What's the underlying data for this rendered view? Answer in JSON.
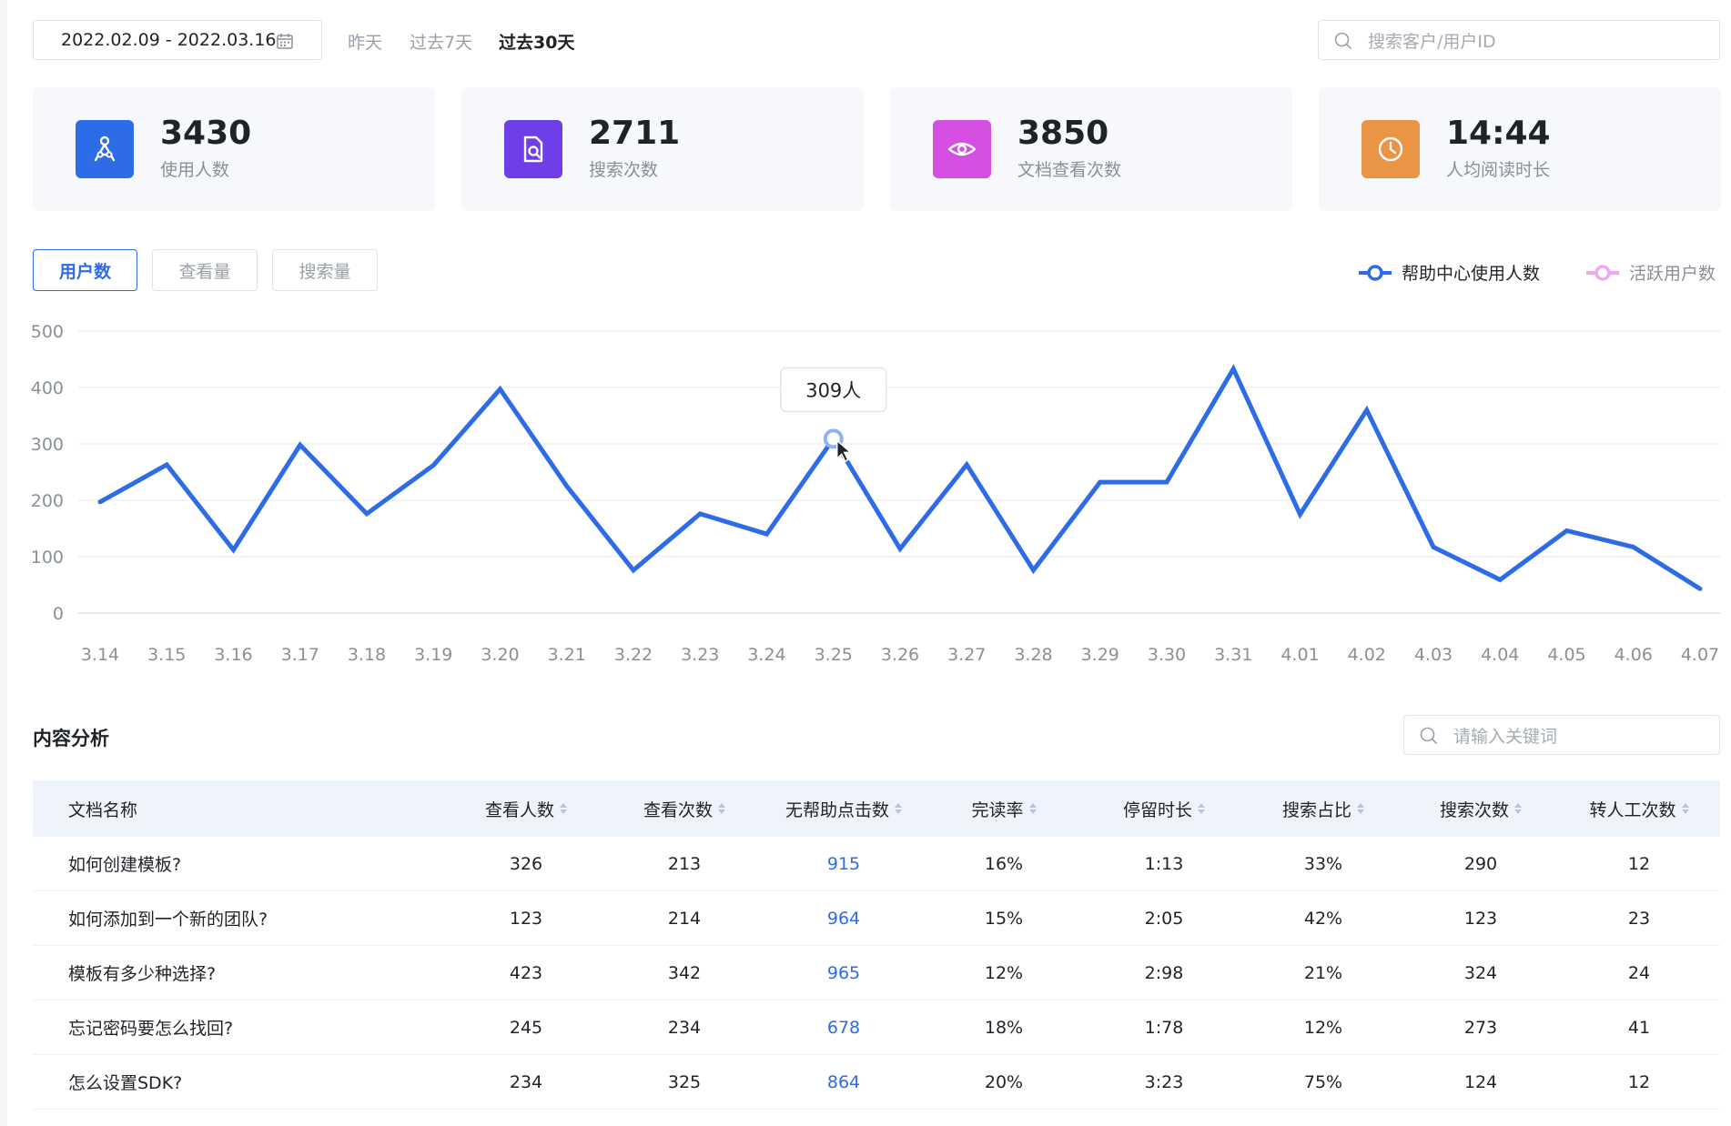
{
  "filters": {
    "date_range": "2022.02.09 - 2022.03.16",
    "quick_ranges": [
      "昨天",
      "过去7天",
      "过去30天"
    ],
    "active_quick_range": 2,
    "search_placeholder": "搜索客户/用户ID"
  },
  "stats": [
    {
      "value": "3430",
      "label": "使用人数",
      "icon": "users-icon",
      "color": "#2e6be6"
    },
    {
      "value": "2711",
      "label": "搜索次数",
      "icon": "doc-search-icon",
      "color": "#6e3ee6"
    },
    {
      "value": "3850",
      "label": "文档查看次数",
      "icon": "eye-icon",
      "color": "#d64fe3"
    },
    {
      "value": "14:44",
      "label": "人均阅读时长",
      "icon": "clock-icon",
      "color": "#ea9445"
    }
  ],
  "tabs": [
    "用户数",
    "查看量",
    "搜索量"
  ],
  "active_tab": 0,
  "legend": [
    {
      "name": "帮助中心使用人数",
      "color": "#2e6be6"
    },
    {
      "name": "活跃用户数",
      "color": "#f0a8ee"
    }
  ],
  "tooltip": {
    "text": "309人",
    "index": 11
  },
  "chart_data": {
    "type": "line",
    "x": [
      "3.14",
      "3.15",
      "3.16",
      "3.17",
      "3.18",
      "3.19",
      "3.20",
      "3.21",
      "3.22",
      "3.23",
      "3.24",
      "3.25",
      "3.26",
      "3.27",
      "3.28",
      "3.29",
      "3.30",
      "3.31",
      "4.01",
      "4.02",
      "4.03",
      "4.04",
      "4.05",
      "4.06",
      "4.07"
    ],
    "yticks": [
      "0",
      "100",
      "200",
      "300",
      "400",
      "500"
    ],
    "ylim": [
      0,
      500
    ],
    "grid": true,
    "series": [
      {
        "name": "帮助中心使用人数",
        "color": "#2e6be6",
        "values": [
          197,
          263,
          112,
          298,
          176,
          262,
          397,
          225,
          76,
          176,
          140,
          309,
          114,
          263,
          76,
          232,
          232,
          433,
          175,
          360,
          117,
          59,
          146,
          117,
          43
        ]
      }
    ]
  },
  "content": {
    "title": "内容分析",
    "search_placeholder": "请输入关键词",
    "columns": [
      "文档名称",
      "查看人数",
      "查看次数",
      "无帮助点击数",
      "完读率",
      "停留时长",
      "搜索占比",
      "搜索次数",
      "转人工次数"
    ],
    "rows": [
      [
        "如何创建模板?",
        "326",
        "213",
        "915",
        "16%",
        "1:13",
        "33%",
        "290",
        "12"
      ],
      [
        "如何添加到一个新的团队?",
        "123",
        "214",
        "964",
        "15%",
        "2:05",
        "42%",
        "123",
        "23"
      ],
      [
        "模板有多少种选择?",
        "423",
        "342",
        "965",
        "12%",
        "2:98",
        "21%",
        "324",
        "24"
      ],
      [
        "忘记密码要怎么找回?",
        "245",
        "234",
        "678",
        "18%",
        "1:78",
        "12%",
        "273",
        "41"
      ],
      [
        "怎么设置SDK?",
        "234",
        "325",
        "864",
        "20%",
        "3:23",
        "75%",
        "124",
        "12"
      ]
    ]
  }
}
